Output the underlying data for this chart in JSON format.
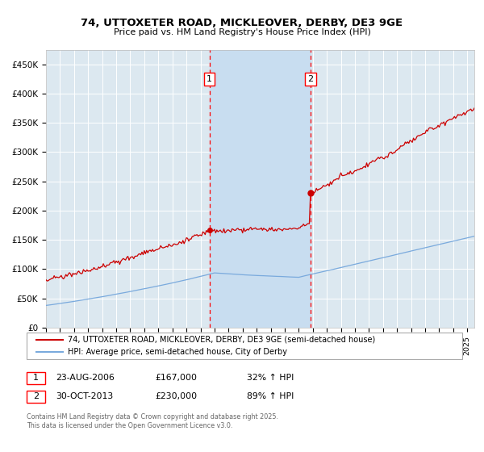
{
  "title_line1": "74, UTTOXETER ROAD, MICKLEOVER, DERBY, DE3 9GE",
  "title_line2": "Price paid vs. HM Land Registry's House Price Index (HPI)",
  "background_color": "#ffffff",
  "plot_bg_color": "#dce8f0",
  "grid_color": "#ffffff",
  "shade_color": "#c8ddf0",
  "red_line_color": "#cc0000",
  "blue_line_color": "#7aaadd",
  "sale1_date_num": 2006.64,
  "sale2_date_num": 2013.83,
  "sale1_price": 167000,
  "sale2_price": 230000,
  "legend_line1": "74, UTTOXETER ROAD, MICKLEOVER, DERBY, DE3 9GE (semi-detached house)",
  "legend_line2": "HPI: Average price, semi-detached house, City of Derby",
  "table_row1": [
    "1",
    "23-AUG-2006",
    "£167,000",
    "32% ↑ HPI"
  ],
  "table_row2": [
    "2",
    "30-OCT-2013",
    "£230,000",
    "89% ↑ HPI"
  ],
  "footer": "Contains HM Land Registry data © Crown copyright and database right 2025.\nThis data is licensed under the Open Government Licence v3.0.",
  "ylim": [
    0,
    475000
  ],
  "xlim_start": 1995.0,
  "xlim_end": 2025.5,
  "yticks": [
    0,
    50000,
    100000,
    150000,
    200000,
    250000,
    300000,
    350000,
    400000,
    450000
  ],
  "ytick_labels": [
    "£0",
    "£50K",
    "£100K",
    "£150K",
    "£200K",
    "£250K",
    "£300K",
    "£350K",
    "£400K",
    "£450K"
  ]
}
